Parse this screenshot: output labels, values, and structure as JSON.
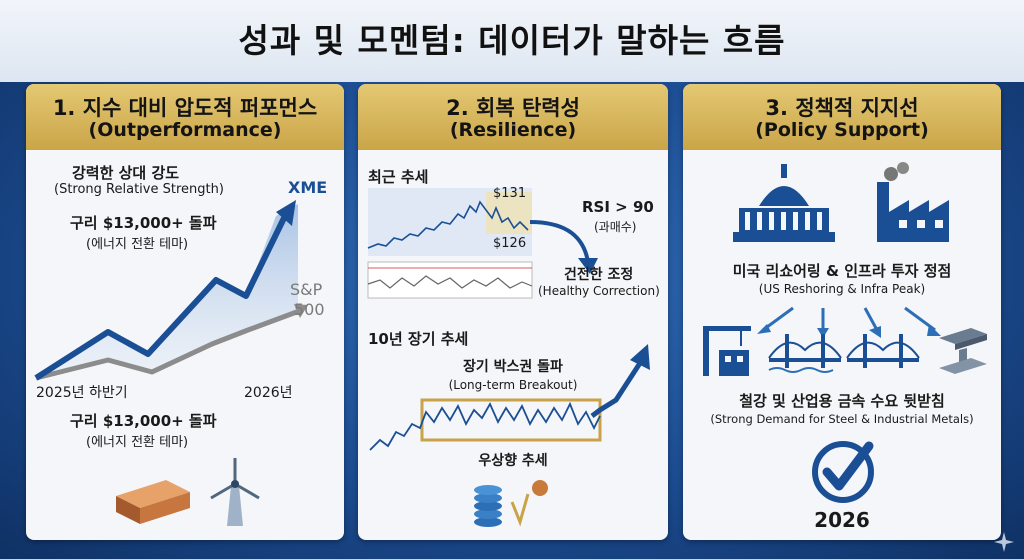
{
  "title": "성과 및 모멘텀: 데이터가 말하는 흐름",
  "panel1": {
    "heading": "1. 지수 대비 압도적 퍼포먼스",
    "heading_en": "(Outperformance)",
    "label1": "강력한 상대 강도",
    "label1_en": "(Strong Relative Strength)",
    "label2": "구리 $13,000+ 돌파",
    "label2_en": "(에너지 전환 테마)",
    "series_xme": "XME",
    "series_sp": "S&P",
    "series_sp2": "500",
    "x_start": "2025년 하반기",
    "x_end": "2026년",
    "bottom_label": "구리 $13,000+ 돌파",
    "bottom_label_en": "(에너지 전환 테마)"
  },
  "panel2": {
    "heading": "2. 회복 탄력성",
    "heading_en": "(Resilience)",
    "recent": "최근 추세",
    "price_high": "$131",
    "price_low": "$126",
    "rsi": "RSI > 90",
    "rsi_note": "(과매수)",
    "correction": "건전한 조정",
    "correction_en": "(Healthy Correction)",
    "longterm": "10년 장기 추세",
    "breakout": "장기 박스권 돌파",
    "breakout_en": "(Long-term Breakout)",
    "uptrend": "우상향 추세"
  },
  "panel3": {
    "heading": "3. 정책적 지지선",
    "heading_en": "(Policy Support)",
    "label1": "미국 리쇼어링 & 인프라 투자 정점",
    "label1_en": "(US Reshoring & Infra Peak)",
    "label2": "철강 및 산업용 금속 수요 뒷받침",
    "label2_en": "(Strong Demand for Steel & Industrial Metals)",
    "year": "2026"
  },
  "colors": {
    "gold": "#d4b05a",
    "navy": "#1b4f95",
    "gray_line": "#8c8c8c",
    "background_blue": "#1c4c91"
  },
  "icons": [
    "capitol-icon",
    "factory-icon",
    "crane-icon",
    "bridge-icon",
    "steel-beam-icon",
    "checkmark-icon",
    "copper-ingot-icon",
    "wind-turbine-icon",
    "coin-stack-icon",
    "sparkle-icon"
  ]
}
